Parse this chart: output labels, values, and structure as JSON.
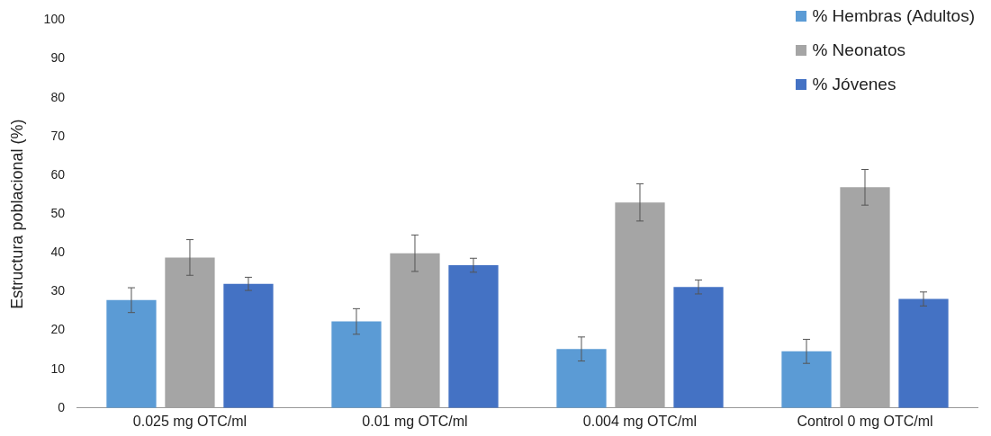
{
  "chart_data": {
    "type": "bar",
    "ylabel": "Estructura poblacional (%)",
    "categories": [
      "0.025 mg OTC/ml",
      "0.01 mg OTC/ml",
      "0.004 mg OTC/ml",
      "Control 0 mg OTC/ml"
    ],
    "series": [
      {
        "name": "% Hembras (Adultos)",
        "color": "#5b9bd5",
        "values": [
          27.8,
          22.3,
          15.2,
          14.6
        ],
        "errors": [
          3.2,
          3.3,
          3.1,
          3.1
        ]
      },
      {
        "name": "% Neonatos",
        "color": "#a5a5a5",
        "values": [
          38.8,
          39.9,
          53,
          56.9
        ],
        "errors": [
          4.6,
          4.7,
          4.8,
          4.6
        ]
      },
      {
        "name": "% Jóvenes",
        "color": "#4472c4",
        "values": [
          32,
          36.8,
          31.2,
          28.1
        ],
        "errors": [
          1.7,
          1.8,
          1.8,
          1.8
        ]
      }
    ],
    "ylim": [
      0,
      100
    ],
    "yticks": [
      0,
      10,
      20,
      30,
      40,
      50,
      60,
      70,
      80,
      90,
      100
    ],
    "grid": false,
    "legend": "top right"
  }
}
